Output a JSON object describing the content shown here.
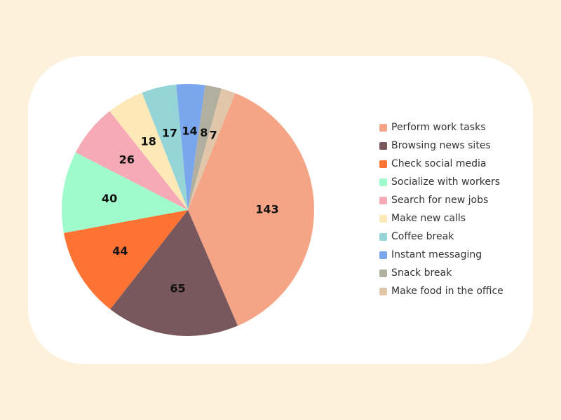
{
  "chart_data": {
    "type": "pie",
    "title": "",
    "legend_position": "right",
    "slices": [
      {
        "label": "Perform work tasks",
        "value": 143,
        "color": "#f5a585"
      },
      {
        "label": "Browsing news sites",
        "value": 65,
        "color": "#78585d"
      },
      {
        "label": "Check social media",
        "value": 44,
        "color": "#fd7334"
      },
      {
        "label": "Socialize with workers",
        "value": 40,
        "color": "#9ffbcb"
      },
      {
        "label": "Search for new jobs",
        "value": 26,
        "color": "#f5aab5"
      },
      {
        "label": "Make new calls",
        "value": 18,
        "color": "#fde9b8"
      },
      {
        "label": "Coffee break",
        "value": 17,
        "color": "#95d5d8"
      },
      {
        "label": "Instant messaging",
        "value": 14,
        "color": "#79a6ed"
      },
      {
        "label": "Snack break",
        "value": 8,
        "color": "#b1b0a0"
      },
      {
        "label": "Make food in the office",
        "value": 7,
        "color": "#e2c6aa"
      }
    ]
  }
}
